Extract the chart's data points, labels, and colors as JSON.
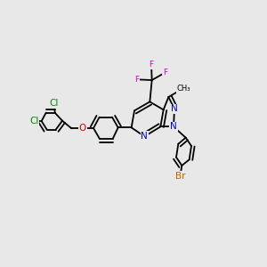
{
  "background_color": "#e8e8e8",
  "fig_width": 3.0,
  "fig_height": 3.0,
  "dpi": 100,
  "bond_color": "#000000",
  "bond_lw": 1.3,
  "colors": {
    "N": "#0000cc",
    "O": "#cc0000",
    "F": "#cc00cc",
    "Cl": "#008800",
    "Br": "#bb6600",
    "C": "#000000"
  },
  "font_size": 7.5,
  "font_size_small": 6.5
}
